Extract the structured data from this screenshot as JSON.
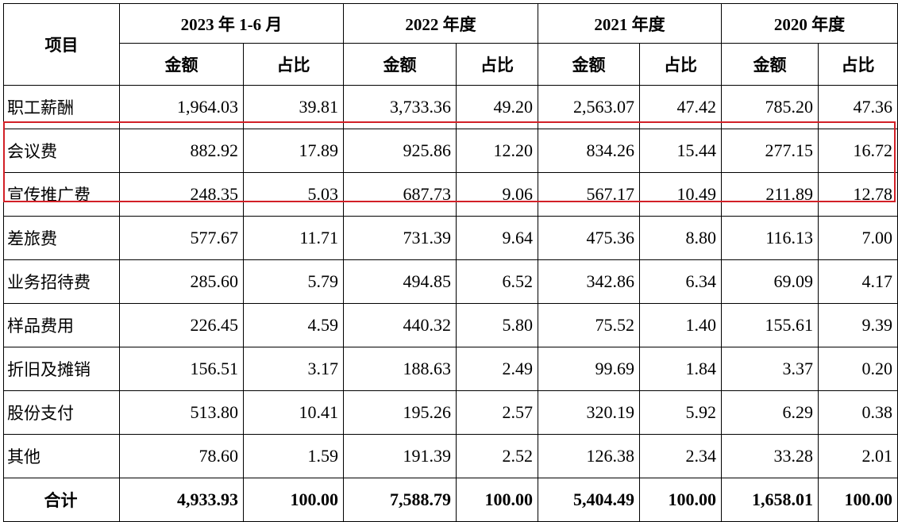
{
  "header": {
    "item": "项目",
    "periods": [
      "2023 年 1-6 月",
      "2022 年度",
      "2021 年度",
      "2020 年度"
    ],
    "amount": "金额",
    "ratio": "占比"
  },
  "rows": [
    {
      "name": "职工薪酬",
      "values": [
        "1,964.03",
        "39.81",
        "3,733.36",
        "49.20",
        "2,563.07",
        "47.42",
        "785.20",
        "47.36"
      ]
    },
    {
      "name": "会议费",
      "values": [
        "882.92",
        "17.89",
        "925.86",
        "12.20",
        "834.26",
        "15.44",
        "277.15",
        "16.72"
      ]
    },
    {
      "name": "宣传推广费",
      "values": [
        "248.35",
        "5.03",
        "687.73",
        "9.06",
        "567.17",
        "10.49",
        "211.89",
        "12.78"
      ]
    },
    {
      "name": "差旅费",
      "values": [
        "577.67",
        "11.71",
        "731.39",
        "9.64",
        "475.36",
        "8.80",
        "116.13",
        "7.00"
      ]
    },
    {
      "name": "业务招待费",
      "values": [
        "285.60",
        "5.79",
        "494.85",
        "6.52",
        "342.86",
        "6.34",
        "69.09",
        "4.17"
      ]
    },
    {
      "name": "样品费用",
      "values": [
        "226.45",
        "4.59",
        "440.32",
        "5.80",
        "75.52",
        "1.40",
        "155.61",
        "9.39"
      ]
    },
    {
      "name": "折旧及摊销",
      "values": [
        "156.51",
        "3.17",
        "188.63",
        "2.49",
        "99.69",
        "1.84",
        "3.37",
        "0.20"
      ]
    },
    {
      "name": "股份支付",
      "values": [
        "513.80",
        "10.41",
        "195.26",
        "2.57",
        "320.19",
        "5.92",
        "6.29",
        "0.38"
      ]
    },
    {
      "name": "其他",
      "values": [
        "78.60",
        "1.59",
        "191.39",
        "2.52",
        "126.38",
        "2.34",
        "33.28",
        "2.01"
      ]
    }
  ],
  "total": {
    "name": "合计",
    "values": [
      "4,933.93",
      "100.00",
      "7,588.79",
      "100.00",
      "5,404.49",
      "100.00",
      "1,658.01",
      "100.00"
    ]
  },
  "highlight_color": "#d22027"
}
